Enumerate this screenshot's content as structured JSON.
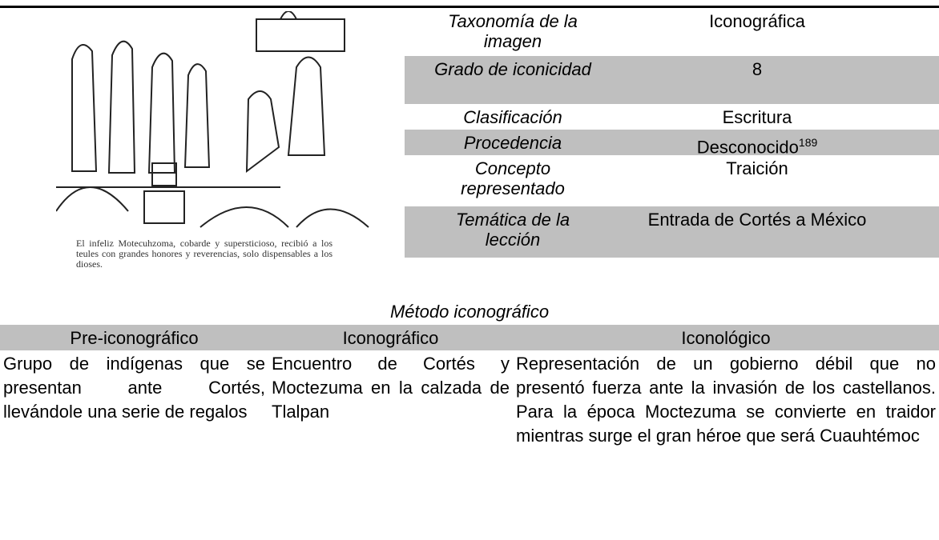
{
  "image": {
    "caption": "El infeliz Motecuhzoma, cobarde y supersticioso, recibió a los teules con grandes honores y reverencias, solo dispensables a los dioses."
  },
  "info_table": {
    "rows": [
      {
        "label": "Taxonomía de la imagen",
        "value": "Iconográfica"
      },
      {
        "label": "Grado de iconicidad",
        "value": "8"
      },
      {
        "label": "Clasificación",
        "value": "Escritura"
      },
      {
        "label": "Procedencia",
        "value": "Desconocido",
        "footnote": "189"
      },
      {
        "label": "Concepto representado",
        "value": "Traición"
      },
      {
        "label": "Temática de la lección",
        "value": "Entrada de Cortés a México"
      }
    ]
  },
  "method_table": {
    "title": "Método iconográfico",
    "headers": [
      "Pre-iconográfico",
      "Iconográfico",
      "Iconológico"
    ],
    "cells": [
      "Grupo de indígenas que se presentan ante Cortés, llevándole una serie de regalos",
      "Encuentro de Cortés y Moctezuma en la calzada de Tlalpan",
      "Representación de un gobierno débil que no presentó fuerza ante la invasión de los castellanos. Para la época Moctezuma se convierte en traidor mientras surge el gran héroe que será Cuauhtémoc"
    ]
  }
}
